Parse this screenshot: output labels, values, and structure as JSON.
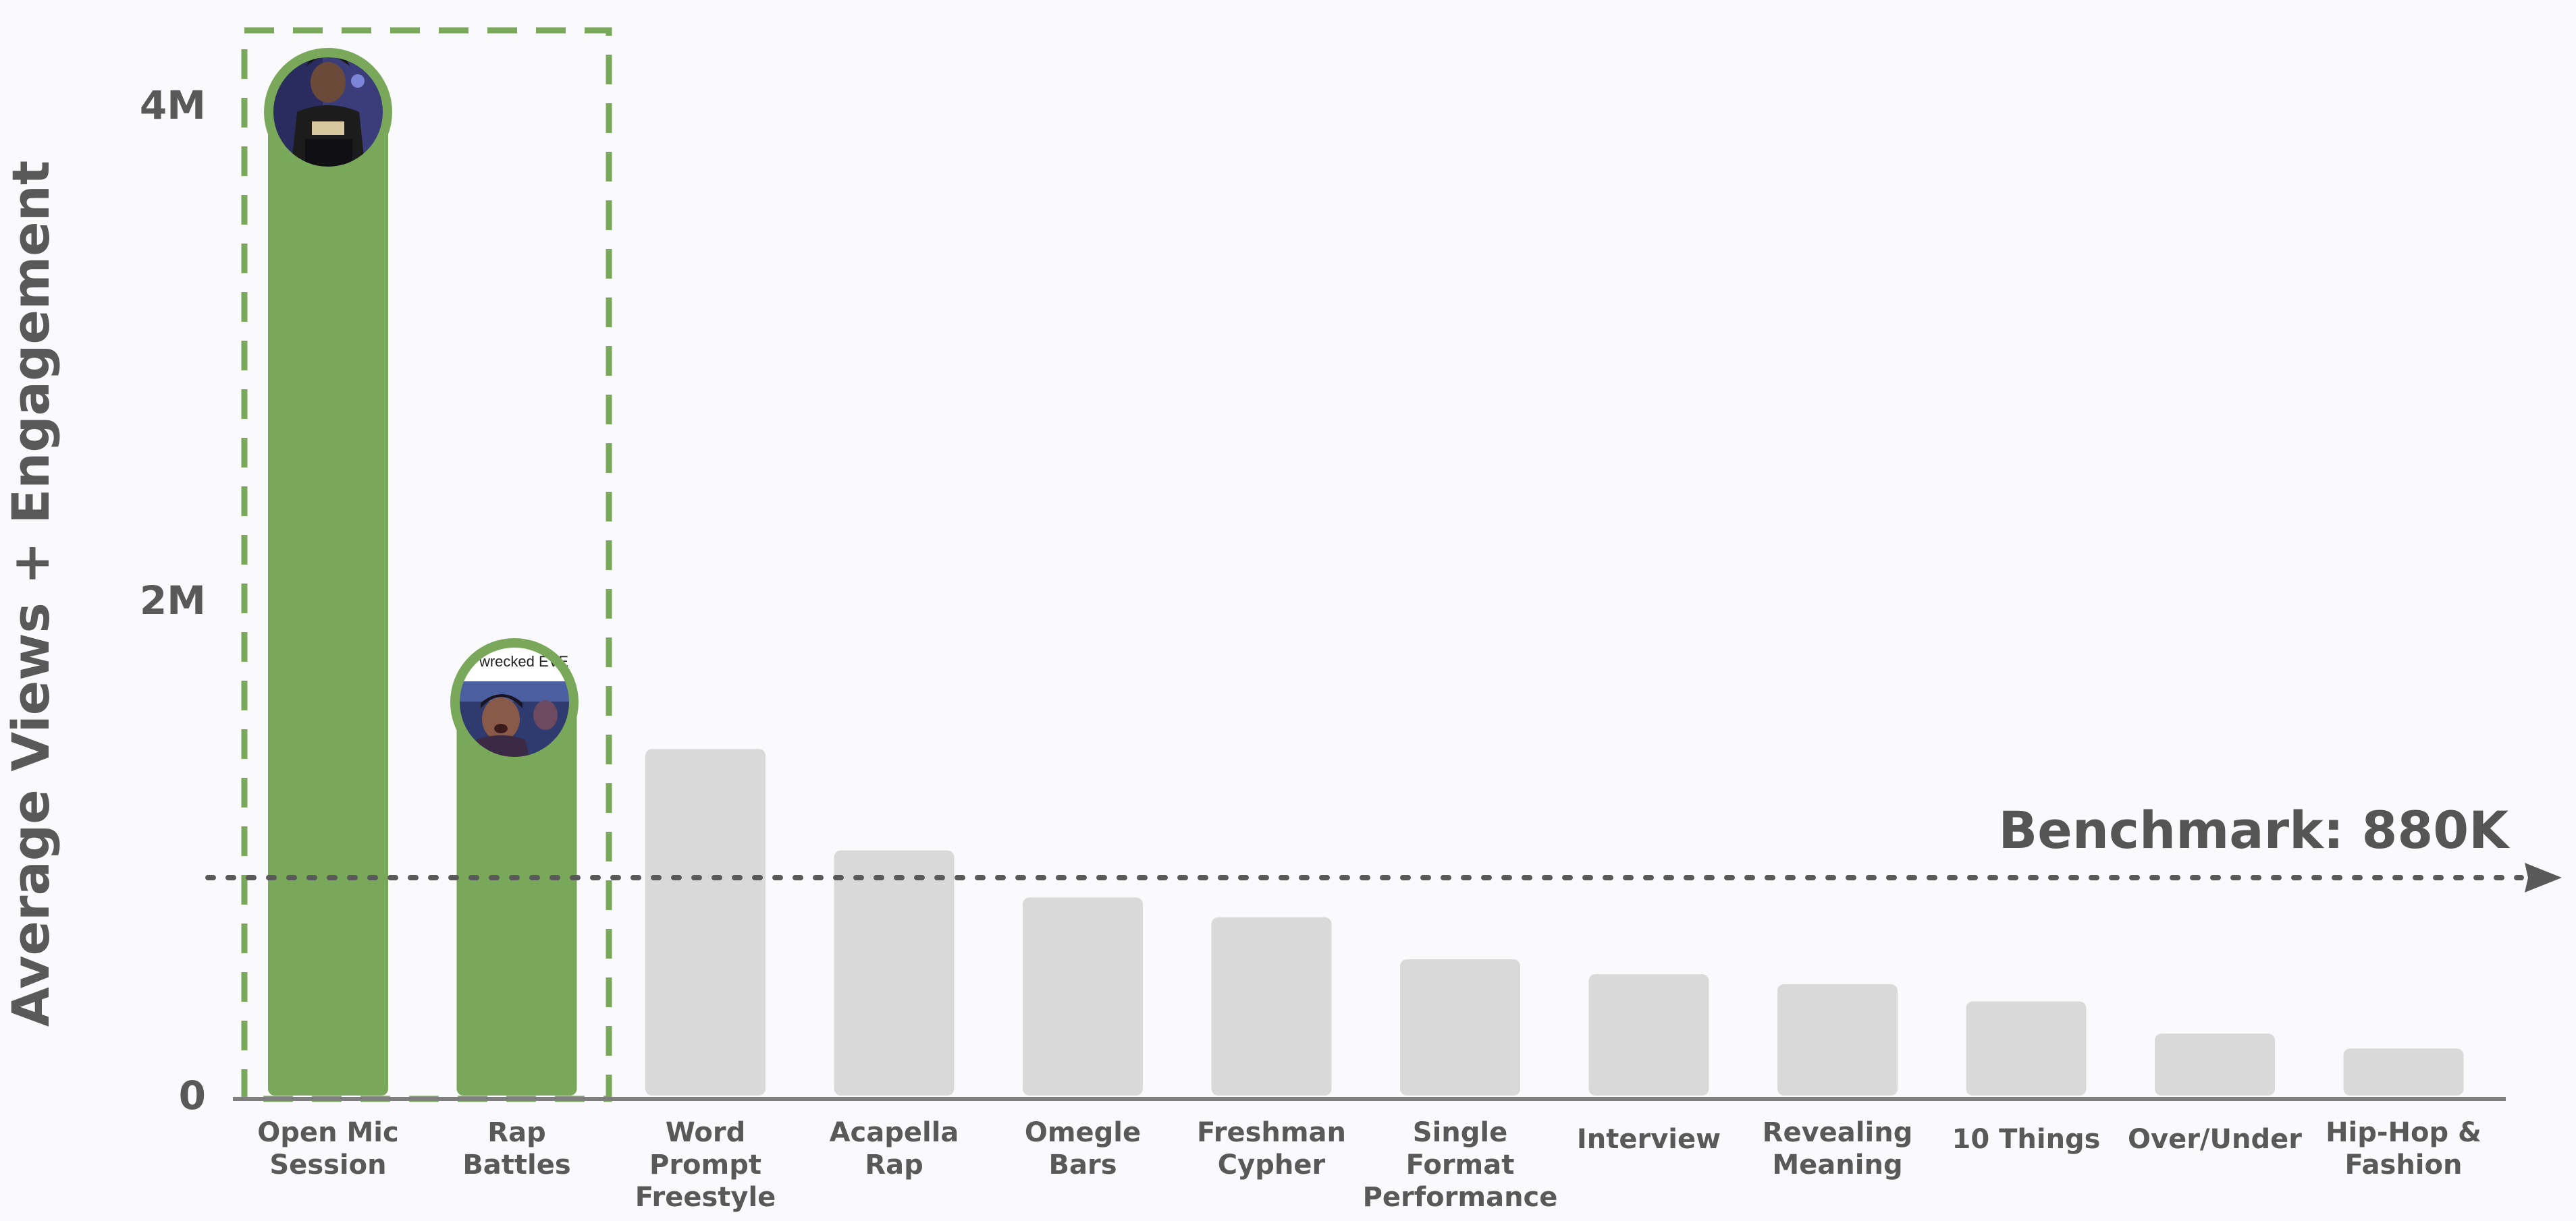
{
  "chart_data": {
    "type": "bar",
    "ylabel": "Average Views + Engagement",
    "xlabel": "",
    "ylim": [
      0,
      4000000
    ],
    "yticks": [
      {
        "value": 0,
        "label": "0"
      },
      {
        "value": 2000000,
        "label": "2M"
      },
      {
        "value": 4000000,
        "label": "4M"
      }
    ],
    "categories": [
      [
        "Open Mic",
        "Session"
      ],
      [
        "Rap",
        "Battles"
      ],
      [
        "Word",
        "Prompt",
        "Freestyle"
      ],
      [
        "Acapella",
        "Rap"
      ],
      [
        "Omegle",
        "Bars"
      ],
      [
        "Freshman",
        "Cypher"
      ],
      [
        "Single",
        "Format",
        "Performance"
      ],
      [
        "Interview"
      ],
      [
        "Revealing",
        "Meaning"
      ],
      [
        "10 Things"
      ],
      [
        "Over/Under"
      ],
      [
        "Hip-Hop &",
        "Fashion"
      ]
    ],
    "values": [
      3950000,
      1580000,
      1400000,
      990000,
      800000,
      720000,
      550000,
      490000,
      450000,
      380000,
      250000,
      190000
    ],
    "highlighted": [
      true,
      true,
      false,
      false,
      false,
      false,
      false,
      false,
      false,
      false,
      false,
      false
    ],
    "benchmark": {
      "value": 880000,
      "label": "Benchmark: 880K"
    },
    "thumbnails": [
      {
        "category_index": 0,
        "depicts": "performer-photo"
      },
      {
        "category_index": 1,
        "caption": "wrecked EVE",
        "depicts": "performer-photo"
      }
    ],
    "colors": {
      "highlight": "#79a85a",
      "default": "#d9d9d9",
      "text": "#595959",
      "axis": "#7f7f7f",
      "benchmark": "#595959"
    },
    "grid": false,
    "legend": "none"
  }
}
